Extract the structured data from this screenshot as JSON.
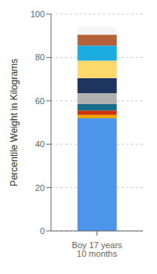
{
  "chart_data": {
    "type": "bar",
    "stacked": true,
    "categories": [
      "Boy 17 years 10 months"
    ],
    "series": [
      {
        "color": "#4d94eb",
        "values": [
          52
        ]
      },
      {
        "color": "#f0a500",
        "values": [
          1.5
        ]
      },
      {
        "color": "#cc3300",
        "values": [
          2.0
        ]
      },
      {
        "color": "#1a6e8a",
        "values": [
          3.0
        ]
      },
      {
        "color": "#b0b0b0",
        "values": [
          5.0
        ]
      },
      {
        "color": "#1e3560",
        "values": [
          7.0
        ]
      },
      {
        "color": "#fdd86a",
        "values": [
          8.0
        ]
      },
      {
        "color": "#1aace0",
        "values": [
          7.0
        ]
      },
      {
        "color": "#b5623a",
        "values": [
          5.0
        ]
      },
      {
        "color": "#f5f5f5",
        "values": [
          3.5
        ]
      }
    ],
    "ylabel": "Percentile Weight in Kilograms",
    "ylim": [
      0,
      100
    ],
    "yticks": [
      0,
      20,
      40,
      60,
      80,
      100
    ],
    "grid": true
  }
}
